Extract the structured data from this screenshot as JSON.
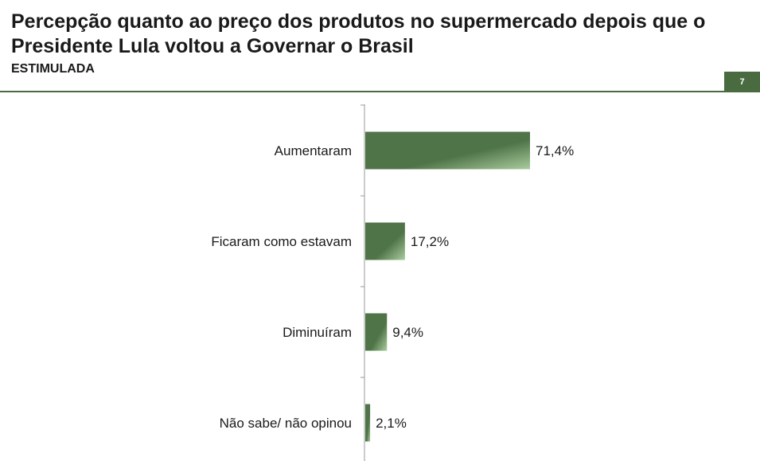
{
  "header": {
    "title": "Percepção quanto ao preço dos produtos no supermercado depois que o Presidente Lula voltou a Governar o Brasil",
    "subtitle": "ESTIMULADA",
    "page_number": "7"
  },
  "colors": {
    "accent": "#4a6b40",
    "bar_dark": "#4f7447",
    "bar_light": "#a9cc9e"
  },
  "chart_data": {
    "type": "bar",
    "orientation": "horizontal",
    "categories": [
      "Aumentaram",
      "Ficaram como estavam",
      "Diminuíram",
      "Não sabe/ não opinou"
    ],
    "values": [
      71.4,
      17.2,
      9.4,
      2.1
    ],
    "value_labels": [
      "71,4%",
      "17,2%",
      "9,4%",
      "2,1%"
    ],
    "title": "Percepção quanto ao preço dos produtos no supermercado depois que o Presidente Lula voltou a Governar o Brasil",
    "xlabel": "",
    "ylabel": "",
    "xlim": [
      0,
      100
    ],
    "grid": false,
    "legend": "none"
  }
}
